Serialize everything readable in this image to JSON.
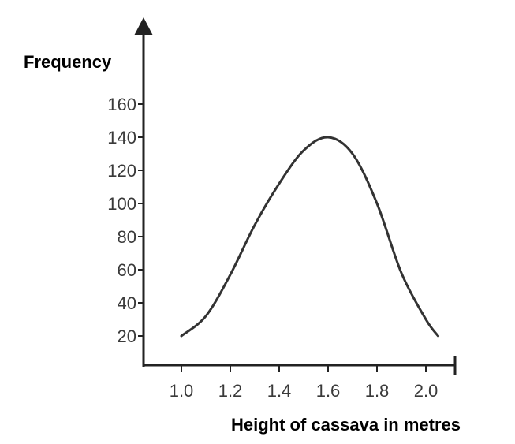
{
  "chart_data": {
    "type": "line",
    "title": "",
    "xlabel": "Height of cassava in metres",
    "ylabel": "Frequency",
    "xlim": [
      1.0,
      2.0
    ],
    "ylim": [
      20,
      160
    ],
    "x_ticks": [
      "1.0",
      "1.2",
      "1.4",
      "1.6",
      "1.8",
      "2.0"
    ],
    "y_ticks": [
      "20",
      "40",
      "60",
      "80",
      "100",
      "120",
      "140",
      "160"
    ],
    "grid": false,
    "legend": "none",
    "series": [
      {
        "x": [
          1.0,
          1.1,
          1.2,
          1.3,
          1.4,
          1.5,
          1.6,
          1.7,
          1.8,
          1.9,
          2.0,
          2.05
        ],
        "y": [
          20,
          32,
          57,
          87,
          112,
          132,
          140,
          130,
          100,
          58,
          30,
          20
        ]
      }
    ],
    "colors": {
      "line": "#333333",
      "axis": "#222222"
    }
  }
}
